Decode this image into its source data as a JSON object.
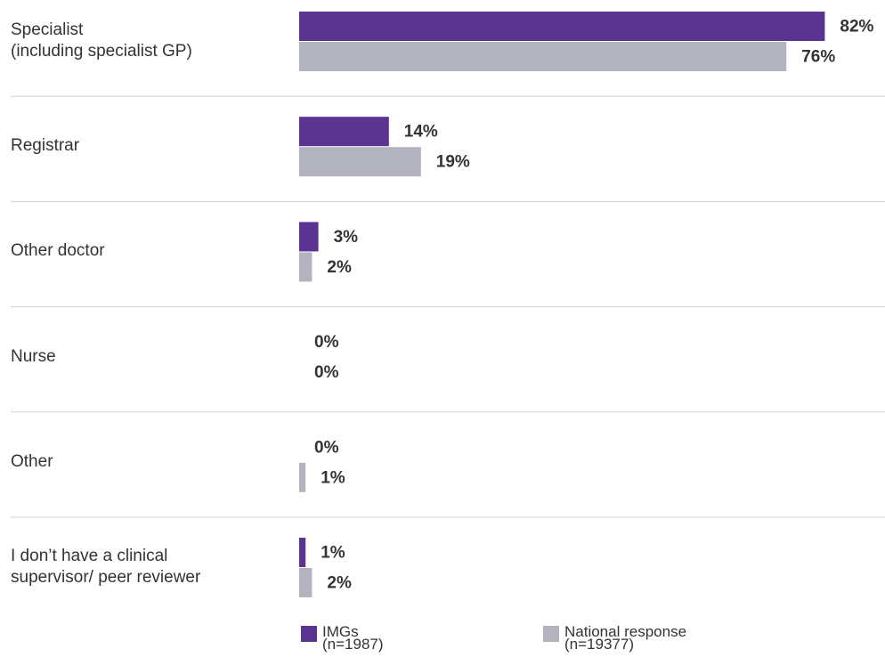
{
  "chart_data": {
    "type": "bar",
    "orientation": "horizontal",
    "categories": [
      "Specialist\n(including specialist GP)",
      "Registrar",
      "Other doctor",
      "Nurse",
      "Other",
      "I don’t have a clinical\nsupervisor/ peer reviewer"
    ],
    "series": [
      {
        "name": "IMGs\n(n=1987)",
        "color": "#5b3391",
        "values": [
          82,
          14,
          3,
          0,
          0,
          1
        ],
        "value_labels": [
          "82%",
          "14%",
          "3%",
          "0%",
          "0%",
          "1%"
        ]
      },
      {
        "name": "National response\n(n=19377)",
        "color": "#b3b3bf",
        "values": [
          76,
          19,
          2,
          0,
          1,
          2
        ],
        "value_labels": [
          "76%",
          "19%",
          "2%",
          "0%",
          "1%",
          "2%"
        ]
      }
    ],
    "xlim": [
      0,
      100
    ]
  }
}
